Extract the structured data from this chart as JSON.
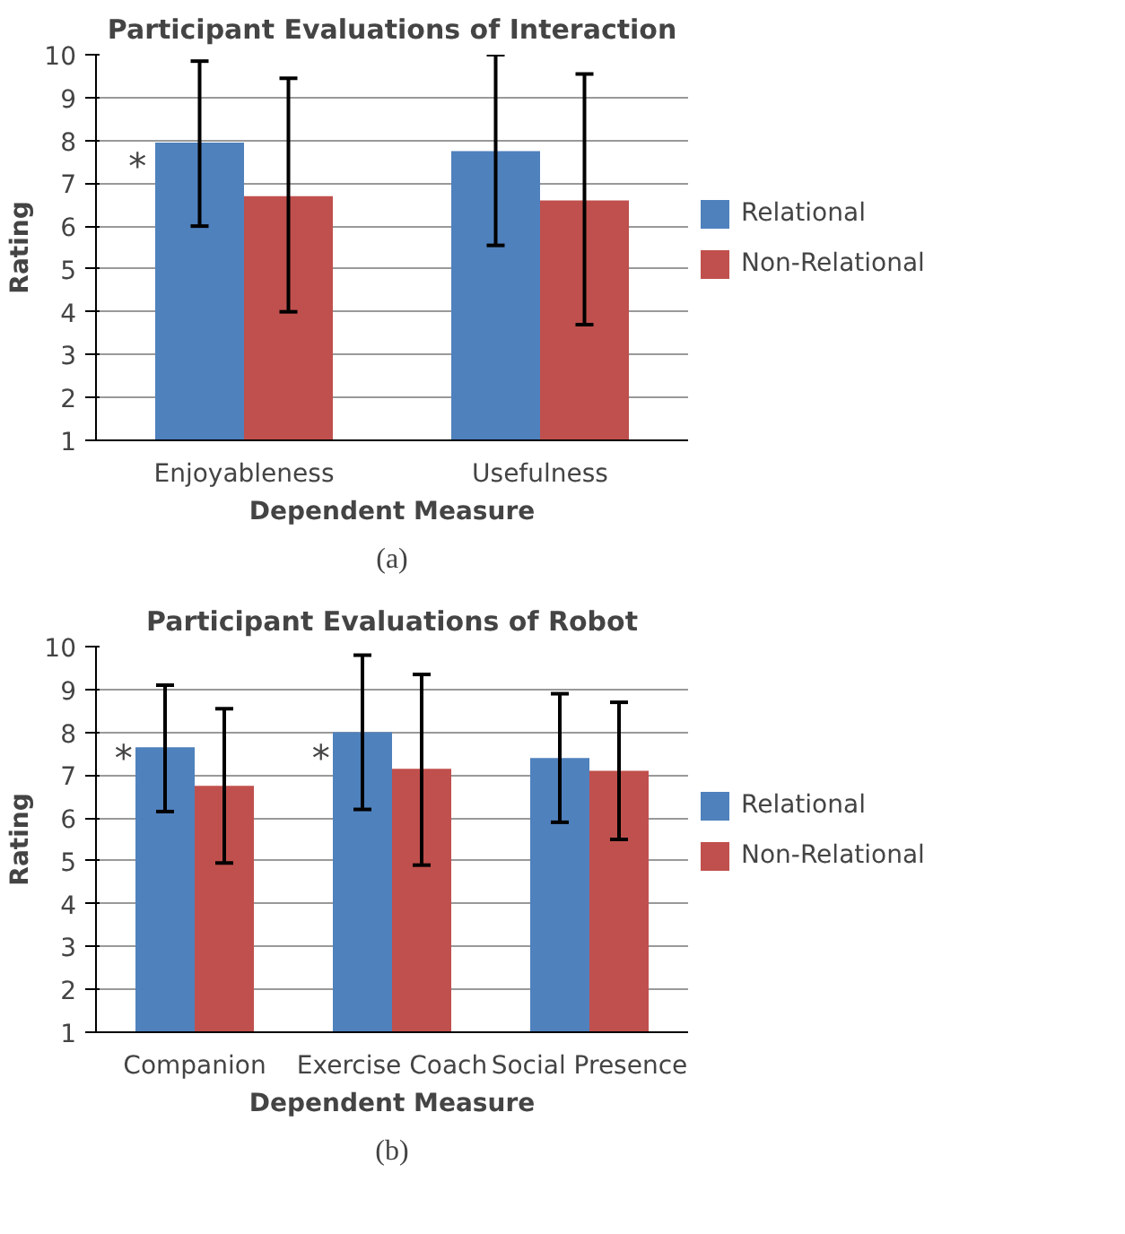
{
  "chart_data": [
    {
      "type": "bar",
      "title": "Participant Evaluations of Interaction",
      "xlabel": "Dependent Measure",
      "ylabel": "Rating",
      "categories": [
        "Enjoyableness",
        "Usefulness"
      ],
      "series": [
        {
          "name": "Relational",
          "color": "#4f81bd",
          "values": [
            7.95,
            7.75
          ],
          "errors": [
            [
              6.0,
              9.85
            ],
            [
              5.55,
              10.0
            ]
          ]
        },
        {
          "name": "Non-Relational",
          "color": "#c0504d",
          "values": [
            6.7,
            6.6
          ],
          "errors": [
            [
              4.0,
              9.45
            ],
            [
              3.7,
              9.55
            ]
          ]
        }
      ],
      "ylim": [
        1,
        10
      ],
      "yticks": [
        1,
        2,
        3,
        4,
        5,
        6,
        7,
        8,
        9,
        10
      ],
      "grid": "y",
      "legend": "right",
      "annotations": [
        {
          "text": "*",
          "x": "Enjoyableness",
          "y": 7.4
        },
        "(a)"
      ]
    },
    {
      "type": "bar",
      "title": "Participant Evaluations of Robot",
      "xlabel": "Dependent Measure",
      "ylabel": "Rating",
      "categories": [
        "Companion",
        "Exercise Coach",
        "Social Presence"
      ],
      "series": [
        {
          "name": "Relational",
          "color": "#4f81bd",
          "values": [
            7.65,
            8.0,
            7.4
          ],
          "errors": [
            [
              6.15,
              9.1
            ],
            [
              6.2,
              9.8
            ],
            [
              5.9,
              8.9
            ]
          ]
        },
        {
          "name": "Non-Relational",
          "color": "#c0504d",
          "values": [
            6.75,
            7.15,
            7.1
          ],
          "errors": [
            [
              4.95,
              8.55
            ],
            [
              4.9,
              9.35
            ],
            [
              5.5,
              8.7
            ]
          ]
        }
      ],
      "ylim": [
        1,
        10
      ],
      "yticks": [
        1,
        2,
        3,
        4,
        5,
        6,
        7,
        8,
        9,
        10
      ],
      "grid": "y",
      "legend": "right",
      "annotations": [
        {
          "text": "*",
          "x": "Companion",
          "y": 7.4
        },
        {
          "text": "*",
          "x": "Exercise Coach",
          "y": 7.4
        },
        "(b)"
      ]
    }
  ]
}
